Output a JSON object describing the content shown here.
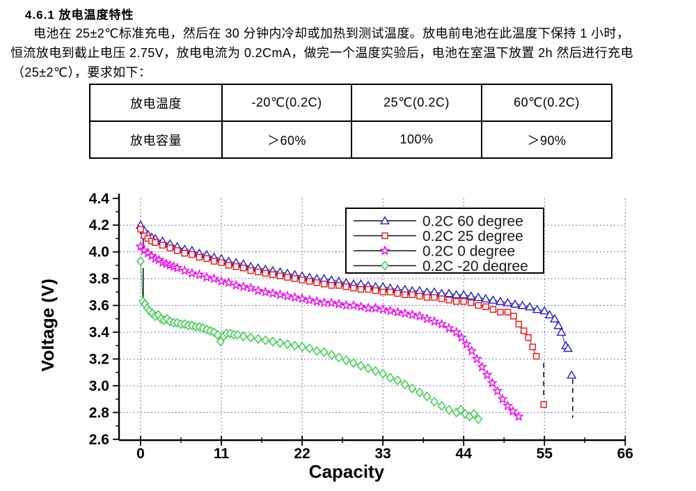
{
  "doc": {
    "section_title": "4.6.1  放电温度特性",
    "paragraph_lines": [
      "电池在 25±2℃标准充电，然后在 30 分钟内冷却或加热到测试温度。放电前电池在此温度下保持 1 小时，",
      "恒流放电到截止电压 2.75V，放电电流为 0.2CmA，做完一个温度实验后，电池在室温下放置 2h 然后进行充电",
      "（25±2℃），要求如下："
    ]
  },
  "table": {
    "rows": [
      [
        "放电温度",
        "-20℃(0.2C)",
        "25℃(0.2C)",
        "60℃(0.2C)"
      ],
      [
        "放电容量",
        "＞60%",
        "100%",
        "＞90%"
      ]
    ]
  },
  "chart_data": {
    "type": "line",
    "title": "",
    "xlabel": "Capacity",
    "ylabel": "Voltage (V)",
    "xlim": [
      -3,
      69
    ],
    "ylim": [
      2.6,
      4.4
    ],
    "xticks": [
      0,
      11,
      22,
      33,
      44,
      55,
      66
    ],
    "yticks": [
      2.6,
      2.8,
      3.0,
      3.2,
      3.4,
      3.6,
      3.8,
      4.0,
      4.2,
      4.4
    ],
    "grid": true,
    "grid_style": "dotted-blue",
    "grid_color": "#4444cc",
    "legend_position": "upper-center-inside",
    "series": [
      {
        "name": "0.2C  60 degree",
        "color": "#1f1fc4",
        "marker": "triangle",
        "points": [
          [
            0,
            4.2
          ],
          [
            0.5,
            4.16
          ],
          [
            1,
            4.13
          ],
          [
            1.5,
            4.11
          ],
          [
            2,
            4.1
          ],
          [
            3,
            4.08
          ],
          [
            4,
            4.06
          ],
          [
            5,
            4.04
          ],
          [
            6,
            4.02
          ],
          [
            7,
            4.01
          ],
          [
            8,
            3.99
          ],
          [
            9,
            3.98
          ],
          [
            10,
            3.96
          ],
          [
            11,
            3.95
          ],
          [
            12,
            3.93
          ],
          [
            13,
            3.92
          ],
          [
            14,
            3.91
          ],
          [
            15,
            3.89
          ],
          [
            16,
            3.88
          ],
          [
            17,
            3.87
          ],
          [
            18,
            3.86
          ],
          [
            19,
            3.85
          ],
          [
            20,
            3.84
          ],
          [
            21,
            3.83
          ],
          [
            22,
            3.82
          ],
          [
            23,
            3.81
          ],
          [
            24,
            3.8
          ],
          [
            25,
            3.8
          ],
          [
            26,
            3.79
          ],
          [
            27,
            3.78
          ],
          [
            28,
            3.77
          ],
          [
            29,
            3.76
          ],
          [
            30,
            3.76
          ],
          [
            31,
            3.75
          ],
          [
            32,
            3.74
          ],
          [
            33,
            3.74
          ],
          [
            34,
            3.73
          ],
          [
            35,
            3.72
          ],
          [
            36,
            3.72
          ],
          [
            37,
            3.71
          ],
          [
            38,
            3.71
          ],
          [
            39,
            3.7
          ],
          [
            40,
            3.7
          ],
          [
            41,
            3.69
          ],
          [
            42,
            3.69
          ],
          [
            43,
            3.68
          ],
          [
            44,
            3.68
          ],
          [
            45,
            3.67
          ],
          [
            46,
            3.66
          ],
          [
            47,
            3.65
          ],
          [
            48,
            3.64
          ],
          [
            49,
            3.63
          ],
          [
            50,
            3.62
          ],
          [
            51,
            3.61
          ],
          [
            52,
            3.6
          ],
          [
            53,
            3.59
          ],
          [
            54,
            3.57
          ],
          [
            55,
            3.56
          ],
          [
            55.7,
            3.53
          ],
          [
            56.4,
            3.5
          ],
          [
            56.9,
            3.45
          ],
          [
            57.3,
            3.4
          ],
          [
            57.9,
            3.3
          ],
          [
            58.2,
            3.28
          ]
        ],
        "tail_points": [
          [
            58.7,
            3.08
          ]
        ]
      },
      {
        "name": "0.2C  25 degree",
        "color": "#ee1111",
        "marker": "square",
        "points": [
          [
            0,
            4.17
          ],
          [
            0.5,
            4.12
          ],
          [
            1,
            4.1
          ],
          [
            1.5,
            4.08
          ],
          [
            2,
            4.07
          ],
          [
            3,
            4.05
          ],
          [
            4,
            4.03
          ],
          [
            5,
            4.01
          ],
          [
            6,
            3.99
          ],
          [
            7,
            3.98
          ],
          [
            8,
            3.96
          ],
          [
            9,
            3.95
          ],
          [
            10,
            3.93
          ],
          [
            11,
            3.92
          ],
          [
            12,
            3.9
          ],
          [
            13,
            3.89
          ],
          [
            14,
            3.88
          ],
          [
            15,
            3.86
          ],
          [
            16,
            3.85
          ],
          [
            17,
            3.84
          ],
          [
            18,
            3.83
          ],
          [
            19,
            3.82
          ],
          [
            20,
            3.81
          ],
          [
            21,
            3.8
          ],
          [
            22,
            3.79
          ],
          [
            23,
            3.78
          ],
          [
            24,
            3.77
          ],
          [
            25,
            3.76
          ],
          [
            26,
            3.75
          ],
          [
            27,
            3.75
          ],
          [
            28,
            3.74
          ],
          [
            29,
            3.73
          ],
          [
            30,
            3.72
          ],
          [
            31,
            3.72
          ],
          [
            32,
            3.71
          ],
          [
            33,
            3.7
          ],
          [
            34,
            3.7
          ],
          [
            35,
            3.69
          ],
          [
            36,
            3.68
          ],
          [
            37,
            3.68
          ],
          [
            38,
            3.67
          ],
          [
            39,
            3.66
          ],
          [
            40,
            3.66
          ],
          [
            41,
            3.65
          ],
          [
            42,
            3.64
          ],
          [
            43,
            3.63
          ],
          [
            44,
            3.63
          ],
          [
            45,
            3.62
          ],
          [
            46,
            3.6
          ],
          [
            47,
            3.59
          ],
          [
            48,
            3.57
          ],
          [
            49,
            3.55
          ],
          [
            50,
            3.55
          ],
          [
            50.8,
            3.52
          ],
          [
            51.5,
            3.46
          ],
          [
            52.2,
            3.41
          ],
          [
            52.8,
            3.36
          ],
          [
            53.4,
            3.29
          ],
          [
            53.9,
            3.22
          ]
        ],
        "tail_points": [
          [
            54.9,
            2.86
          ]
        ]
      },
      {
        "name": "0.2C  0  degree",
        "color": "#ee00ee",
        "marker": "star",
        "points": [
          [
            0,
            4.04
          ],
          [
            0.5,
            4.01
          ],
          [
            1,
            3.99
          ],
          [
            1.5,
            3.97
          ],
          [
            2,
            3.95
          ],
          [
            2.5,
            3.94
          ],
          [
            3,
            3.92
          ],
          [
            3.5,
            3.91
          ],
          [
            4,
            3.9
          ],
          [
            4.5,
            3.89
          ],
          [
            5,
            3.88
          ],
          [
            6,
            3.86
          ],
          [
            7,
            3.84
          ],
          [
            8,
            3.83
          ],
          [
            9,
            3.81
          ],
          [
            10,
            3.8
          ],
          [
            11,
            3.78
          ],
          [
            12,
            3.77
          ],
          [
            13,
            3.75
          ],
          [
            14,
            3.74
          ],
          [
            15,
            3.73
          ],
          [
            16,
            3.71
          ],
          [
            17,
            3.7
          ],
          [
            18,
            3.69
          ],
          [
            19,
            3.68
          ],
          [
            20,
            3.67
          ],
          [
            21,
            3.66
          ],
          [
            22,
            3.65
          ],
          [
            23,
            3.64
          ],
          [
            24,
            3.63
          ],
          [
            25,
            3.62
          ],
          [
            26,
            3.62
          ],
          [
            27,
            3.61
          ],
          [
            28,
            3.6
          ],
          [
            29,
            3.6
          ],
          [
            30,
            3.59
          ],
          [
            31,
            3.58
          ],
          [
            32,
            3.58
          ],
          [
            33,
            3.57
          ],
          [
            34,
            3.56
          ],
          [
            35,
            3.55
          ],
          [
            36,
            3.54
          ],
          [
            37,
            3.53
          ],
          [
            38,
            3.52
          ],
          [
            39,
            3.5
          ],
          [
            40,
            3.48
          ],
          [
            41,
            3.46
          ],
          [
            42,
            3.43
          ],
          [
            43,
            3.4
          ],
          [
            43.7,
            3.36
          ],
          [
            44.4,
            3.31
          ],
          [
            45.1,
            3.26
          ],
          [
            45.8,
            3.2
          ],
          [
            46.5,
            3.14
          ],
          [
            47.2,
            3.08
          ],
          [
            47.9,
            3.02
          ],
          [
            48.6,
            2.96
          ],
          [
            49.3,
            2.9
          ],
          [
            50,
            2.85
          ],
          [
            50.7,
            2.81
          ],
          [
            51.5,
            2.77
          ]
        ],
        "tail_points": []
      },
      {
        "name": "0.2C -20 degree",
        "color": "#2ecc40",
        "marker": "diamond",
        "points": [
          [
            0,
            3.93
          ],
          [
            0.3,
            3.63
          ],
          [
            0.6,
            3.61
          ],
          [
            0.9,
            3.58
          ],
          [
            1.2,
            3.56
          ],
          [
            1.6,
            3.54
          ],
          [
            2,
            3.52
          ],
          [
            2.4,
            3.53
          ],
          [
            2.8,
            3.5
          ],
          [
            3.2,
            3.49
          ],
          [
            3.6,
            3.5
          ],
          [
            4,
            3.48
          ],
          [
            4.5,
            3.47
          ],
          [
            5,
            3.47
          ],
          [
            5.5,
            3.46
          ],
          [
            6,
            3.46
          ],
          [
            6.5,
            3.45
          ],
          [
            7,
            3.45
          ],
          [
            7.5,
            3.44
          ],
          [
            8,
            3.44
          ],
          [
            8.5,
            3.43
          ],
          [
            9,
            3.42
          ],
          [
            9.5,
            3.41
          ],
          [
            10,
            3.4
          ],
          [
            10.5,
            3.38
          ],
          [
            10.9,
            3.33
          ],
          [
            11.3,
            3.37
          ],
          [
            11.7,
            3.39
          ],
          [
            12.2,
            3.39
          ],
          [
            12.7,
            3.38
          ],
          [
            13.2,
            3.38
          ],
          [
            14,
            3.37
          ],
          [
            15,
            3.36
          ],
          [
            16,
            3.35
          ],
          [
            17,
            3.34
          ],
          [
            18,
            3.33
          ],
          [
            19,
            3.32
          ],
          [
            20,
            3.31
          ],
          [
            21,
            3.3
          ],
          [
            22,
            3.29
          ],
          [
            23,
            3.28
          ],
          [
            24,
            3.26
          ],
          [
            25,
            3.25
          ],
          [
            26,
            3.23
          ],
          [
            27,
            3.21
          ],
          [
            28,
            3.19
          ],
          [
            29,
            3.17
          ],
          [
            30,
            3.15
          ],
          [
            31,
            3.13
          ],
          [
            32,
            3.11
          ],
          [
            33,
            3.09
          ],
          [
            34,
            3.06
          ],
          [
            35,
            3.04
          ],
          [
            36,
            3.01
          ],
          [
            37,
            2.98
          ],
          [
            38,
            2.95
          ],
          [
            39,
            2.92
          ],
          [
            40,
            2.88
          ],
          [
            41,
            2.85
          ],
          [
            42,
            2.82
          ],
          [
            43,
            2.8
          ],
          [
            43.6,
            2.82
          ],
          [
            44.2,
            2.79
          ],
          [
            44.8,
            2.77
          ],
          [
            45.4,
            2.79
          ],
          [
            46,
            2.75
          ]
        ],
        "tail_points": []
      }
    ],
    "annotations": [
      {
        "type": "vline",
        "x": 0.35,
        "y1": 4.12,
        "y2": 4.01,
        "style": "solid",
        "color": "#111111"
      },
      {
        "type": "vline",
        "x": 0.35,
        "y1": 3.88,
        "y2": 3.61,
        "style": "solid",
        "color": "#111111"
      },
      {
        "type": "vline",
        "x": 54.9,
        "y1": 3.17,
        "y2": 2.9,
        "style": "dashed",
        "color": "#111111"
      },
      {
        "type": "vline",
        "x": 58.85,
        "y1": 3.05,
        "y2": 2.76,
        "style": "dashed",
        "color": "#111111"
      }
    ]
  }
}
